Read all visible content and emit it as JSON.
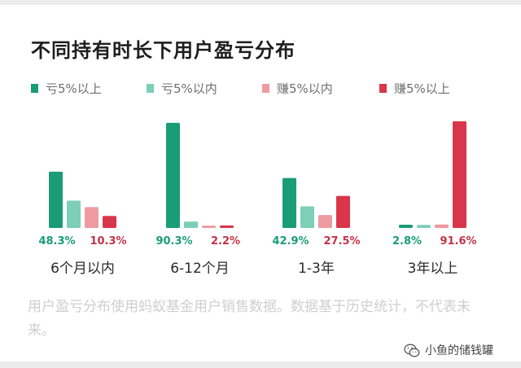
{
  "title": "不同持有时长下用户盈亏分布",
  "footnote": "用户盈亏分布使用蚂蚁基金用户销售数据。数据基于历史统计，不代表未来。",
  "watermark": {
    "text": "小鱼的储钱罐",
    "icon": "wechat-icon"
  },
  "colors": {
    "loss_gt5": "#1a9c77",
    "loss_lt5": "#7dcfb6",
    "gain_lt5": "#ee9aa1",
    "gain_gt5": "#d9364b",
    "label_green": "#1a9c77",
    "label_red": "#c43246"
  },
  "chart_data": {
    "type": "bar",
    "title": "不同持有时长下用户盈亏分布",
    "categories": [
      "6个月以内",
      "6-12个月",
      "1-3年",
      "3年以上"
    ],
    "series": [
      {
        "name": "亏5%以上",
        "values": [
          48.3,
          90.3,
          42.9,
          2.8
        ]
      },
      {
        "name": "亏5%以内",
        "values": [
          23.5,
          5.5,
          18.5,
          2.6
        ]
      },
      {
        "name": "赚5%以内",
        "values": [
          17.9,
          2.0,
          11.1,
          3.0
        ]
      },
      {
        "name": "赚5%以上",
        "values": [
          10.3,
          2.2,
          27.5,
          91.6
        ]
      }
    ],
    "data_labels": [
      {
        "left": "48.3%",
        "right": "10.3%"
      },
      {
        "left": "90.3%",
        "right": "2.2%"
      },
      {
        "left": "42.9%",
        "right": "27.5%"
      },
      {
        "left": "2.8%",
        "right": "91.6%"
      }
    ],
    "ylim": [
      0,
      100
    ],
    "grid": false,
    "legend_position": "top"
  }
}
